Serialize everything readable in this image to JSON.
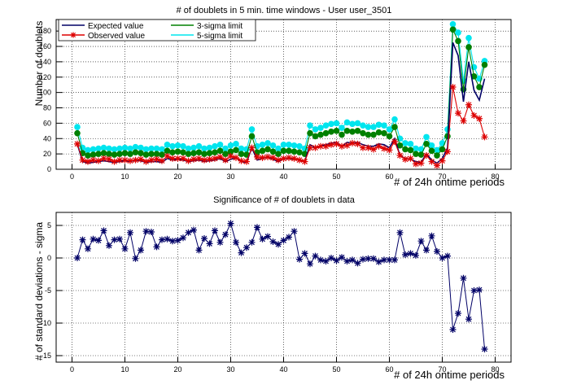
{
  "chart_data": [
    {
      "type": "line",
      "title": "# of doublets in 5 min. time windows - User user_3501",
      "xlabel": "# of 24h ontime periods",
      "ylabel": "Number of doublets",
      "xlim": [
        -3,
        83
      ],
      "ylim": [
        0,
        195
      ],
      "xticks": [
        0,
        10,
        20,
        30,
        40,
        50,
        60,
        70,
        80
      ],
      "yticks": [
        0,
        20,
        40,
        60,
        80,
        100,
        120,
        140,
        160,
        180
      ],
      "grid": true,
      "legend_position": "top-left",
      "x": [
        1,
        2,
        3,
        4,
        5,
        6,
        7,
        8,
        9,
        10,
        11,
        12,
        13,
        14,
        15,
        16,
        17,
        18,
        19,
        20,
        21,
        22,
        23,
        24,
        25,
        26,
        27,
        28,
        29,
        30,
        31,
        32,
        33,
        34,
        35,
        36,
        37,
        38,
        39,
        40,
        41,
        42,
        43,
        44,
        45,
        46,
        47,
        48,
        49,
        50,
        51,
        52,
        53,
        54,
        55,
        56,
        57,
        58,
        59,
        60,
        61,
        62,
        63,
        64,
        65,
        66,
        67,
        68,
        69,
        70,
        71,
        72,
        73,
        74,
        75,
        76,
        77,
        78
      ],
      "series": [
        {
          "name": "Expected value",
          "color": "#000066",
          "marker": "line",
          "values": [
            33,
            10,
            8,
            9,
            10,
            11,
            10,
            9,
            10,
            11,
            10,
            12,
            11,
            9,
            10,
            10,
            9,
            14,
            12,
            13,
            12,
            10,
            11,
            12,
            10,
            11,
            12,
            14,
            10,
            13,
            15,
            10,
            9,
            28,
            12,
            14,
            16,
            13,
            10,
            14,
            14,
            13,
            12,
            10,
            32,
            28,
            30,
            32,
            34,
            35,
            30,
            35,
            34,
            35,
            32,
            30,
            30,
            33,
            32,
            28,
            40,
            18,
            14,
            13,
            10,
            9,
            20,
            12,
            8,
            14,
            28,
            165,
            148,
            88,
            140,
            103,
            90,
            118
          ]
        },
        {
          "name": "Observed value",
          "color": "#dd0000",
          "marker": "star",
          "values": [
            33,
            12,
            10,
            12,
            11,
            14,
            13,
            10,
            12,
            12,
            11,
            12,
            13,
            10,
            12,
            13,
            11,
            17,
            14,
            14,
            14,
            11,
            13,
            14,
            12,
            13,
            14,
            16,
            12,
            17,
            15,
            11,
            10,
            28,
            16,
            15,
            16,
            15,
            12,
            14,
            15,
            14,
            12,
            10,
            28,
            28,
            30,
            30,
            32,
            33,
            30,
            31,
            34,
            33,
            28,
            28,
            26,
            30,
            27,
            25,
            36,
            18,
            13,
            14,
            7,
            8,
            18,
            10,
            5,
            11,
            23,
            107,
            73,
            63,
            84,
            70,
            66,
            42
          ]
        },
        {
          "name": "3-sigma limit",
          "color": "#008000",
          "marker": "circle",
          "values": [
            47,
            21,
            18,
            19,
            20,
            21,
            20,
            19,
            20,
            21,
            20,
            22,
            21,
            19,
            20,
            20,
            19,
            24,
            22,
            23,
            22,
            20,
            21,
            22,
            20,
            21,
            22,
            24,
            20,
            23,
            25,
            20,
            19,
            43,
            22,
            24,
            26,
            23,
            20,
            24,
            24,
            23,
            22,
            20,
            47,
            43,
            45,
            47,
            49,
            50,
            45,
            50,
            49,
            50,
            47,
            45,
            45,
            48,
            47,
            43,
            55,
            31,
            26,
            25,
            20,
            19,
            33,
            24,
            18,
            26,
            43,
            182,
            167,
            104,
            159,
            121,
            107,
            136
          ]
        },
        {
          "name": "5-sigma limit",
          "color": "#00e5ee",
          "marker": "circle",
          "values": [
            55,
            28,
            25,
            26,
            27,
            28,
            27,
            26,
            27,
            28,
            27,
            29,
            28,
            26,
            27,
            27,
            26,
            32,
            30,
            31,
            30,
            27,
            28,
            30,
            27,
            28,
            30,
            32,
            27,
            31,
            33,
            27,
            26,
            52,
            30,
            32,
            34,
            31,
            27,
            32,
            32,
            31,
            30,
            27,
            57,
            52,
            54,
            57,
            59,
            60,
            54,
            61,
            59,
            60,
            57,
            55,
            55,
            58,
            57,
            52,
            65,
            40,
            34,
            33,
            27,
            26,
            42,
            31,
            25,
            34,
            52,
            189,
            178,
            115,
            171,
            133,
            118,
            141
          ]
        }
      ]
    },
    {
      "type": "scatter",
      "title": "Significance of # of doublets in data",
      "xlabel": "# of 24h ontime periods",
      "ylabel": "# of standard deviations - sigma",
      "xlim": [
        -3,
        83
      ],
      "ylim": [
        -16,
        7
      ],
      "xticks": [
        0,
        10,
        20,
        30,
        40,
        50,
        60,
        70,
        80
      ],
      "yticks": [
        -15,
        -10,
        -5,
        0,
        5
      ],
      "grid": true,
      "series": [
        {
          "color": "#000066",
          "marker": "star",
          "x": [
            1,
            2,
            3,
            4,
            5,
            6,
            7,
            8,
            9,
            10,
            11,
            12,
            13,
            14,
            15,
            16,
            17,
            18,
            19,
            20,
            21,
            22,
            23,
            24,
            25,
            26,
            27,
            28,
            29,
            30,
            31,
            32,
            33,
            34,
            35,
            36,
            37,
            38,
            39,
            40,
            41,
            42,
            43,
            44,
            45,
            46,
            47,
            48,
            49,
            50,
            51,
            52,
            53,
            54,
            55,
            56,
            57,
            58,
            59,
            60,
            61,
            62,
            63,
            64,
            65,
            66,
            67,
            68,
            69,
            70,
            71,
            72,
            73,
            74,
            75,
            76,
            77,
            78
          ],
          "values": [
            0,
            2.8,
            1.4,
            2.9,
            2.7,
            4.2,
            1.9,
            2.8,
            2.9,
            1.4,
            3.9,
            -0.1,
            1.2,
            4.1,
            4.0,
            1.7,
            2.8,
            2.9,
            2.6,
            2.7,
            3.1,
            3.9,
            4.3,
            1.2,
            3.0,
            2.2,
            4.2,
            2.4,
            3.6,
            5.3,
            2.4,
            0.8,
            1.6,
            2.4,
            4.7,
            2.9,
            3.3,
            2.5,
            2.1,
            2.7,
            3.2,
            4.1,
            -0.2,
            0.7,
            -0.9,
            0.3,
            -0.3,
            -0.5,
            0,
            -0.4,
            0.1,
            -0.5,
            -0.3,
            -0.8,
            -0.2,
            -0.1,
            -0.1,
            -0.6,
            -0.3,
            -0.3,
            -0.3,
            3.9,
            0.5,
            0.7,
            0.4,
            2.6,
            1.2,
            3.4,
            1.0,
            0.0,
            0.3,
            -11.0,
            -8.5,
            -3.1,
            -9.4,
            -5.0,
            -4.9,
            -14.0
          ]
        }
      ]
    }
  ]
}
